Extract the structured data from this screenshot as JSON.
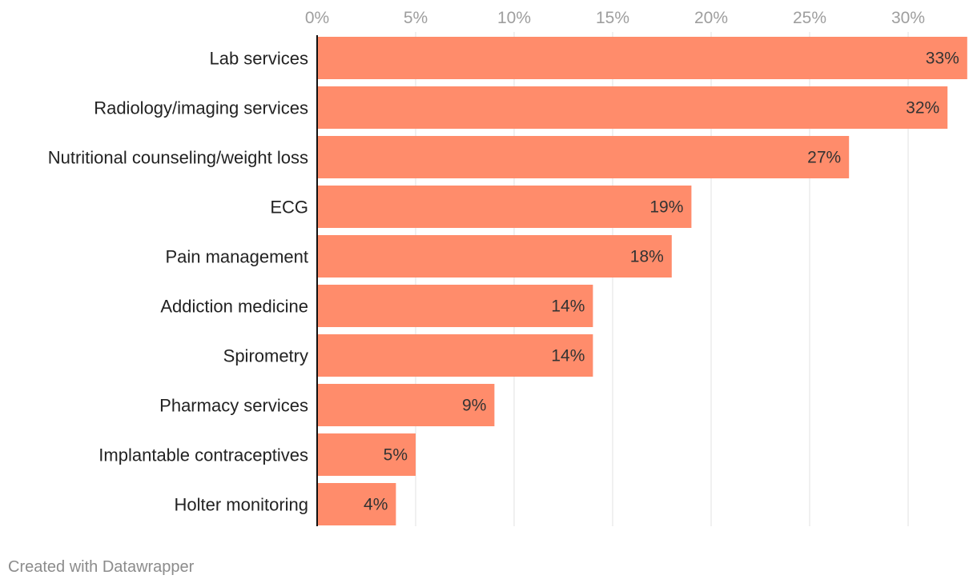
{
  "chart_data": {
    "type": "bar",
    "orientation": "horizontal",
    "title": "",
    "xlabel": "",
    "ylabel": "",
    "xlim": [
      0,
      33
    ],
    "ticks": [
      0,
      5,
      10,
      15,
      20,
      25,
      30
    ],
    "tick_labels": [
      "0%",
      "5%",
      "10%",
      "15%",
      "20%",
      "25%",
      "30%"
    ],
    "grid": true,
    "categories": [
      "Lab services",
      "Radiology/imaging services",
      "Nutritional counseling/weight loss",
      "ECG",
      "Pain management",
      "Addiction medicine",
      "Spirometry",
      "Pharmacy services",
      "Implantable contraceptives",
      "Holter monitoring"
    ],
    "values": [
      33,
      32,
      27,
      19,
      18,
      14,
      14,
      9,
      5,
      4
    ],
    "value_labels": [
      "33%",
      "32%",
      "27%",
      "19%",
      "18%",
      "14%",
      "14%",
      "9%",
      "5%",
      "4%"
    ],
    "colors": {
      "bar": "#ff8c6b",
      "grid": "#e0e0e0",
      "axis": "#111111"
    }
  },
  "footer": {
    "credit": "Created with Datawrapper"
  }
}
